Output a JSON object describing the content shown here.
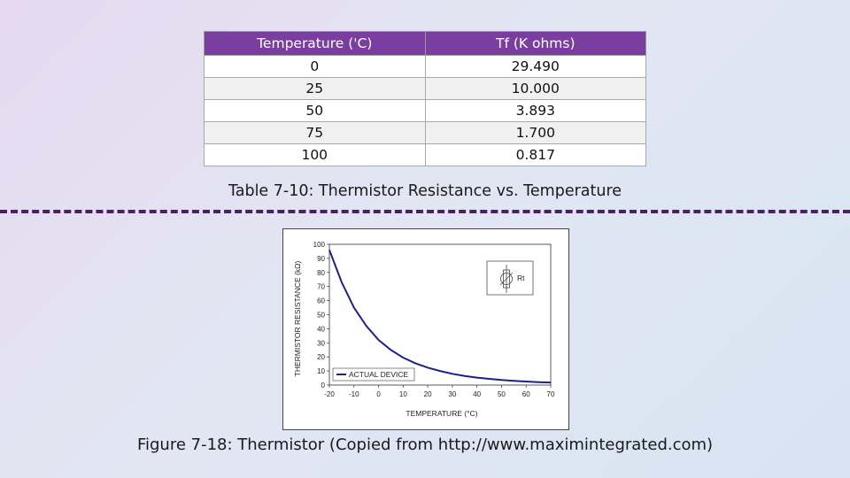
{
  "table": {
    "headers": [
      "Temperature ('C)",
      "Tf (K ohms)"
    ],
    "rows": [
      [
        "0",
        "29.490"
      ],
      [
        "25",
        "10.000"
      ],
      [
        "50",
        "3.893"
      ],
      [
        "75",
        "1.700"
      ],
      [
        "100",
        "0.817"
      ]
    ]
  },
  "table_caption": "Table 7-10: Thermistor Resistance vs. Temperature",
  "figure_caption": "Figure 7‑18: Thermistor (Copied from http://www.maximintegrated.com)",
  "chart_data": {
    "type": "line",
    "xlabel": "TEMPERATURE (°C)",
    "ylabel": "THERMISTOR RESISTANCE (kΩ)",
    "xlim": [
      -20,
      70
    ],
    "ylim": [
      0,
      100
    ],
    "x_ticks": [
      "-20",
      "-10",
      "0",
      "10",
      "20",
      "30",
      "40",
      "50",
      "60",
      "70"
    ],
    "y_ticks": [
      "0",
      "10",
      "20",
      "30",
      "40",
      "50",
      "60",
      "70",
      "80",
      "90",
      "100"
    ],
    "grid": false,
    "legend_position": "bottom-left",
    "symbol_label": "Rt",
    "series": [
      {
        "name": "ACTUAL DEVICE",
        "color": "#1f1f8a",
        "x": [
          -20,
          -15,
          -10,
          -5,
          0,
          5,
          10,
          15,
          20,
          25,
          30,
          35,
          40,
          45,
          50,
          55,
          60,
          65,
          70
        ],
        "y": [
          96,
          73,
          55,
          42,
          32,
          25,
          19.5,
          15.5,
          12.4,
          10,
          8,
          6.5,
          5.3,
          4.4,
          3.6,
          3,
          2.5,
          2.1,
          1.8
        ]
      }
    ]
  }
}
